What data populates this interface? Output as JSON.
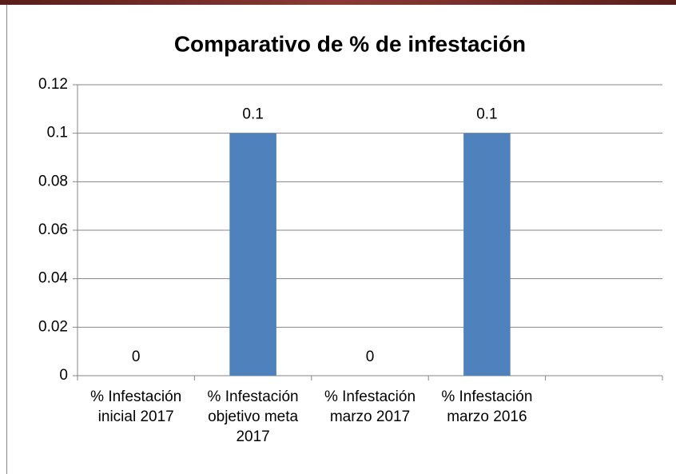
{
  "chart_data": {
    "type": "bar",
    "title": "Comparativo de % de infestación",
    "categories": [
      "% Infestación inicial 2017",
      "% Infestación objetivo meta 2017",
      "% Infestación marzo 2017",
      "% Infestación marzo 2016",
      null
    ],
    "values": [
      0,
      0.1,
      0,
      0.1,
      null
    ],
    "color": "#4f81bd",
    "ylim": [
      0,
      0.12
    ],
    "yticks": [
      0,
      0.02,
      0.04,
      0.06,
      0.08,
      0.1,
      0.12
    ],
    "grid": true
  }
}
